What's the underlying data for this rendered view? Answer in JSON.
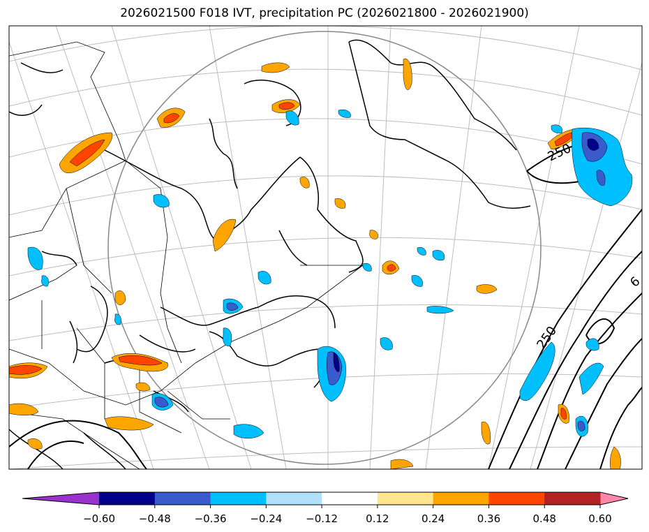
{
  "title": "2026021500 F018 IVT, precipitation PC (2026021800 - 2026021900)",
  "map": {
    "contour_labels": [
      "250",
      "250",
      "6"
    ]
  },
  "colorbar": {
    "colors": [
      "#9932CC",
      "#00008B",
      "#3A5BCD",
      "#00BFFF",
      "#B0E0FA",
      "#FFFFFF",
      "#FFE68C",
      "#FFA500",
      "#FF4500",
      "#B22222",
      "#FF88A8"
    ],
    "tick_labels": [
      "−0.60",
      "−0.48",
      "−0.36",
      "−0.24",
      "−0.12",
      "0.12",
      "0.24",
      "0.36",
      "0.48",
      "0.60"
    ]
  }
}
